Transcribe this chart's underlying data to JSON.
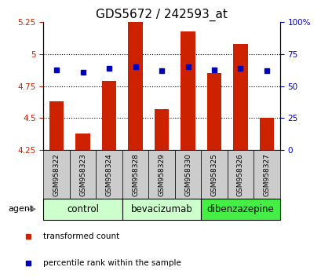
{
  "title": "GDS5672 / 242593_at",
  "samples": [
    "GSM958322",
    "GSM958323",
    "GSM958324",
    "GSM958328",
    "GSM958329",
    "GSM958330",
    "GSM958325",
    "GSM958326",
    "GSM958327"
  ],
  "transformed_counts": [
    4.63,
    4.38,
    4.79,
    5.255,
    4.57,
    5.18,
    4.855,
    5.08,
    4.5
  ],
  "percentile_ranks": [
    63,
    61,
    64,
    65,
    62,
    65,
    63,
    64,
    62
  ],
  "ylim_left": [
    4.25,
    5.25
  ],
  "ylim_right": [
    0,
    100
  ],
  "yticks_left": [
    4.25,
    4.5,
    4.75,
    5.0,
    5.25
  ],
  "yticks_left_labels": [
    "4.25",
    "4.5",
    "4.75",
    "5",
    "5.25"
  ],
  "yticks_right": [
    0,
    25,
    50,
    75,
    100
  ],
  "yticks_right_labels": [
    "0",
    "25",
    "50",
    "75",
    "100%"
  ],
  "grid_values": [
    4.5,
    4.75,
    5.0
  ],
  "bar_color": "#cc2200",
  "dot_color": "#0000bb",
  "bar_width": 0.55,
  "bg_plot": "#ffffff",
  "bg_sample": "#cccccc",
  "title_fontsize": 11,
  "tick_fontsize": 7.5,
  "sample_fontsize": 6.5,
  "group_label_fontsize": 8.5,
  "legend_fontsize": 7.5,
  "legend_items": [
    "transformed count",
    "percentile rank within the sample"
  ],
  "legend_colors": [
    "#cc2200",
    "#0000bb"
  ],
  "agent_label": "agent",
  "group_info": [
    {
      "label": "control",
      "start": 0,
      "end": 2,
      "color": "#ccffcc"
    },
    {
      "label": "bevacizumab",
      "start": 3,
      "end": 5,
      "color": "#ccffcc"
    },
    {
      "label": "dibenzazepine",
      "start": 6,
      "end": 8,
      "color": "#44ee44"
    }
  ]
}
